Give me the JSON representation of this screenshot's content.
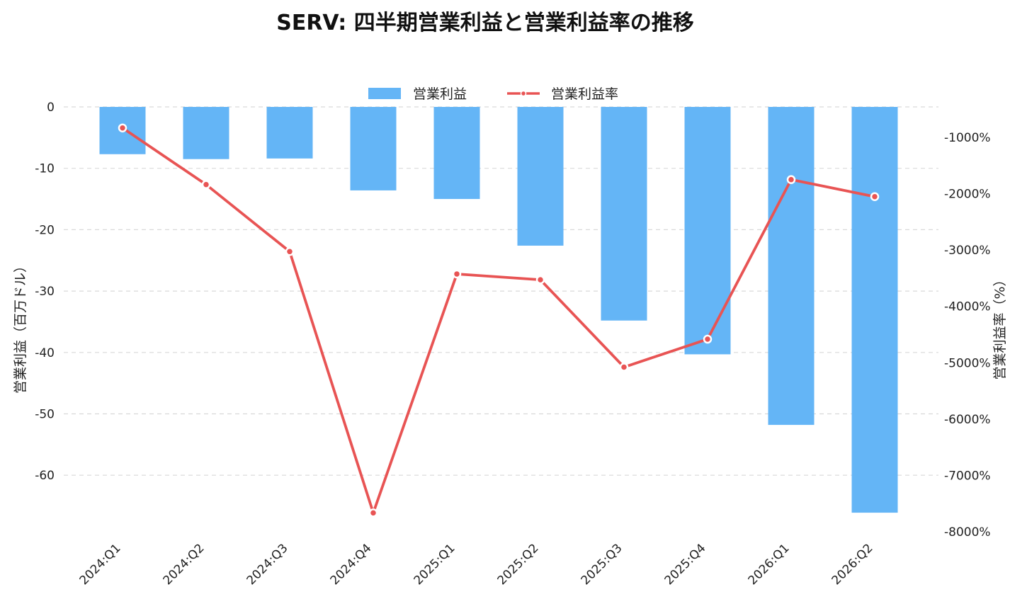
{
  "chart_data": {
    "type": "bar",
    "title": "SERV: 四半期営業利益と営業利益率の推移",
    "categories": [
      "2024:Q1",
      "2024:Q2",
      "2024:Q3",
      "2024:Q4",
      "2025:Q1",
      "2025:Q2",
      "2025:Q3",
      "2025:Q4",
      "2026:Q1",
      "2026:Q2"
    ],
    "series": [
      {
        "name": "営業利益",
        "type": "bar",
        "axis": "left",
        "color": "#64b5f6",
        "values": [
          -7.7,
          -8.5,
          -8.4,
          -13.6,
          -15.0,
          -22.6,
          -34.8,
          -40.3,
          -51.8,
          -66.1
        ]
      },
      {
        "name": "営業利益率",
        "type": "line",
        "axis": "right",
        "color": "#e85454",
        "values": [
          -833,
          -1838,
          -3027,
          -7665,
          -3425,
          -3528,
          -5078,
          -4582,
          -1750,
          -2052
        ]
      }
    ],
    "y_left": {
      "label": "営業利益（百万ドル）",
      "ylim": [
        -69,
        0
      ],
      "ticks": [
        0,
        -10,
        -20,
        -30,
        -40,
        -50,
        -60
      ],
      "tick_labels": [
        "0",
        "-10",
        "-20",
        "-30",
        "-40",
        "-50",
        "-60"
      ]
    },
    "y_right": {
      "label": "営業利益率（%）",
      "ylim": [
        -8000,
        -500
      ],
      "ticks": [
        -1000,
        -2000,
        -3000,
        -4000,
        -5000,
        -6000,
        -7000,
        -8000
      ],
      "tick_labels": [
        "-1000%",
        "-2000%",
        "-3000%",
        "-4000%",
        "-5000%",
        "-6000%",
        "-7000%",
        "-8000%"
      ]
    },
    "grid": true,
    "legend_position": "top-center"
  }
}
